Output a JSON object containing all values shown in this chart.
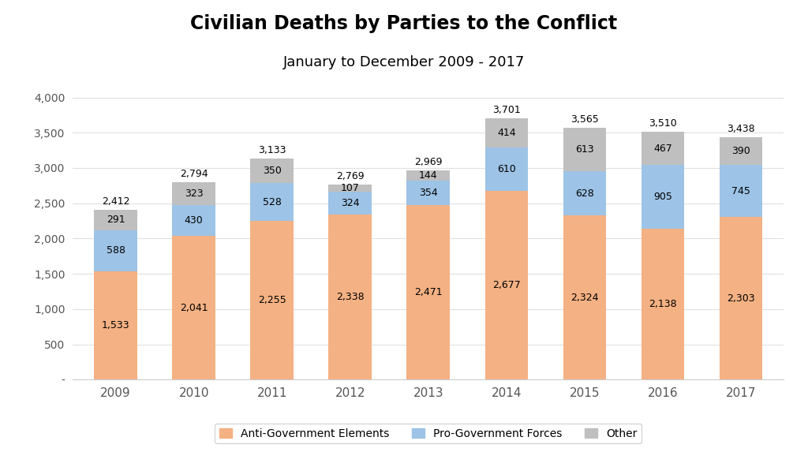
{
  "title": "Civilian Deaths by Parties to the Conflict",
  "subtitle": "January to December 2009 - 2017",
  "years": [
    "2009",
    "2010",
    "2011",
    "2012",
    "2013",
    "2014",
    "2015",
    "2016",
    "2017"
  ],
  "anti_gov": [
    1533,
    2041,
    2255,
    2338,
    2471,
    2677,
    2324,
    2138,
    2303
  ],
  "pro_gov": [
    588,
    430,
    528,
    324,
    354,
    610,
    628,
    905,
    745
  ],
  "other": [
    291,
    323,
    350,
    107,
    144,
    414,
    613,
    467,
    390
  ],
  "totals": [
    2412,
    2794,
    3133,
    2769,
    2969,
    3701,
    3565,
    3510,
    3438
  ],
  "color_anti": "#F4B183",
  "color_pro": "#9DC3E6",
  "color_other": "#BFBFBF",
  "ylim": [
    0,
    4200
  ],
  "yticks": [
    0,
    500,
    1000,
    1500,
    2000,
    2500,
    3000,
    3500,
    4000
  ],
  "ytick_labels": [
    "-",
    "500",
    "1,000",
    "1,500",
    "2,000",
    "2,500",
    "3,000",
    "3,500",
    "4,000"
  ],
  "title_fontsize": 17,
  "subtitle_fontsize": 13,
  "bar_width": 0.55,
  "legend_labels": [
    "Anti-Government Elements",
    "Pro-Government Forces",
    "Other"
  ],
  "background_color": "#FFFFFF",
  "label_fontsize": 9
}
